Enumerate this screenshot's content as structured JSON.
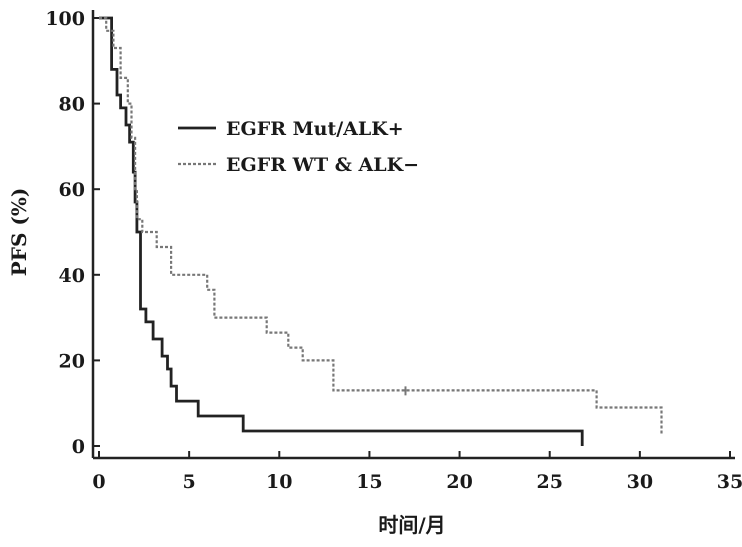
{
  "chart_data": {
    "type": "line",
    "step": true,
    "xlabel": "时间/月",
    "ylabel": "PFS (%)",
    "xlim": [
      0,
      35
    ],
    "ylim": [
      0,
      100
    ],
    "xticks": [
      "0",
      "5",
      "10",
      "15",
      "20",
      "25",
      "30",
      "35"
    ],
    "yticks": [
      "0",
      "20",
      "40",
      "60",
      "80",
      "100"
    ],
    "grid": false,
    "legend_position": "upper-middle",
    "series": [
      {
        "name": "EGFR Mut/ALK+",
        "style": "solid",
        "color": "#222222",
        "x": [
          0,
          0.5,
          0.7,
          1.0,
          1.2,
          1.5,
          1.7,
          1.9,
          2.0,
          2.1,
          2.3,
          2.6,
          3.0,
          3.5,
          3.8,
          4.0,
          4.3,
          5.5,
          8.0,
          26.8
        ],
        "y": [
          100,
          100,
          88,
          82,
          79,
          75,
          71,
          64,
          57,
          50,
          32,
          29,
          25,
          21,
          18,
          14,
          10.5,
          7,
          3.5,
          0
        ]
      },
      {
        "name": "EGFR WT & ALK−",
        "style": "dotted",
        "color": "#777777",
        "x": [
          0,
          0.4,
          0.8,
          1.2,
          1.6,
          1.8,
          2.0,
          2.1,
          2.4,
          3.2,
          4.0,
          6.0,
          6.4,
          9.3,
          10.5,
          11.3,
          13.0,
          27.6,
          31.2
        ],
        "y": [
          100,
          97,
          93,
          86,
          80,
          72,
          60,
          53,
          50,
          46.5,
          40,
          36.5,
          30,
          26.5,
          23,
          20,
          13,
          9,
          2.5
        ]
      }
    ]
  }
}
